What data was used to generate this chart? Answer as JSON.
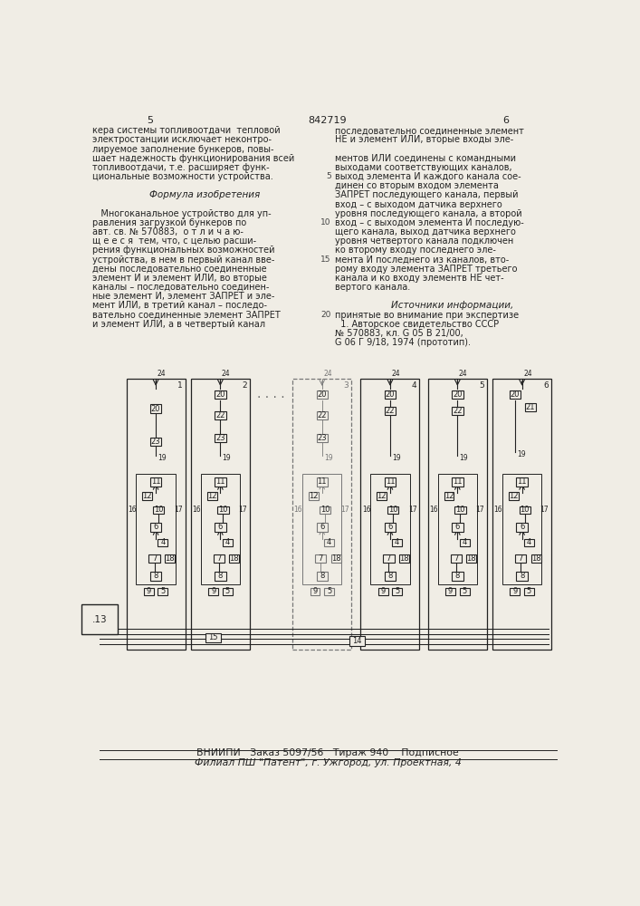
{
  "bg": "#f0ede5",
  "hdr_l": "5",
  "hdr_c": "842719",
  "hdr_r": "6",
  "left_lines": [
    [
      "кера системы топливоотдачи  тепловой",
      false
    ],
    [
      "электростанции исключает неконтро-",
      false
    ],
    [
      "лируемое заполнение бункеров, повы-",
      false
    ],
    [
      "шает надежность функционирования всей",
      false
    ],
    [
      "топливоотдачи, т.е. расширяет функ-",
      false
    ],
    [
      "циональные возможности устройства.",
      false
    ],
    [
      "",
      false
    ],
    [
      "Формула изобретения",
      true
    ],
    [
      "",
      false
    ],
    [
      "   Многоканальное устройство для уп-",
      false
    ],
    [
      "равления загрузкой бункеров по",
      false
    ],
    [
      "авт. св. № 570883,  о т л и ч а ю-",
      false
    ],
    [
      "щ е е с я  тем, что, с целью расши-",
      false
    ],
    [
      "рения функциональных возможностей",
      false
    ],
    [
      "устройства, в нем в первый канал вве-",
      false
    ],
    [
      "дены последовательно соединенные",
      false
    ],
    [
      "элемент И и элемент ИЛИ, во вторые",
      false
    ],
    [
      "каналы – последовательно соединен-",
      false
    ],
    [
      "ные элемент И, элемент ЗАПРЕТ и эле-",
      false
    ],
    [
      "мент ИЛИ, в третий канал – последо-",
      false
    ],
    [
      "вательно соединенные элемент ЗАПРЕТ",
      false
    ],
    [
      "и элемент ИЛИ, а в четвертый канал",
      false
    ]
  ],
  "right_lines": [
    [
      "последовательно соединенные элемент",
      null
    ],
    [
      "НЕ и элемент ИЛИ, вторые входы эле-",
      null
    ],
    [
      "",
      null
    ],
    [
      "ментов ИЛИ соединены с командными",
      null
    ],
    [
      "выходами соответствующих каналов,",
      null
    ],
    [
      "выход элемента И каждого канала сое-",
      "5"
    ],
    [
      "динен со вторым входом элемента",
      null
    ],
    [
      "ЗАПРЕТ последующего канала, первый",
      null
    ],
    [
      "вход – с выходом датчика верхнего",
      null
    ],
    [
      "уровня последующего канала, а второй",
      null
    ],
    [
      "вход – с выходом элемента И последую-",
      "10"
    ],
    [
      "щего канала, выход датчика верхнего",
      null
    ],
    [
      "уровня четвертого канала подключен",
      null
    ],
    [
      "ко второму входу последнего эле-",
      null
    ],
    [
      "мента И последнего из каналов, вто-",
      "15"
    ],
    [
      "рому входу элемента ЗАПРЕТ третьего",
      null
    ],
    [
      "канала и ко входу элементв НЕ чет-",
      null
    ],
    [
      "вертого канала.",
      null
    ],
    [
      "",
      null
    ],
    [
      "Источники информации,",
      "center"
    ],
    [
      "принятые во внимание при экспертизе",
      "20"
    ],
    [
      "  1. Авторское свидетельство СССР",
      null
    ],
    [
      "№ 570883, кл. G 05 В 21/00,",
      null
    ],
    [
      "G 06 Г 9/18, 1974 (прототип).",
      null
    ]
  ],
  "footer1": "ВНИИПИ   Заказ 5097/56   Тираж 940    Подписное",
  "footer2": "Филиал ПШ \"Патент\", г. Ужгород, ул. Проектная, 4"
}
